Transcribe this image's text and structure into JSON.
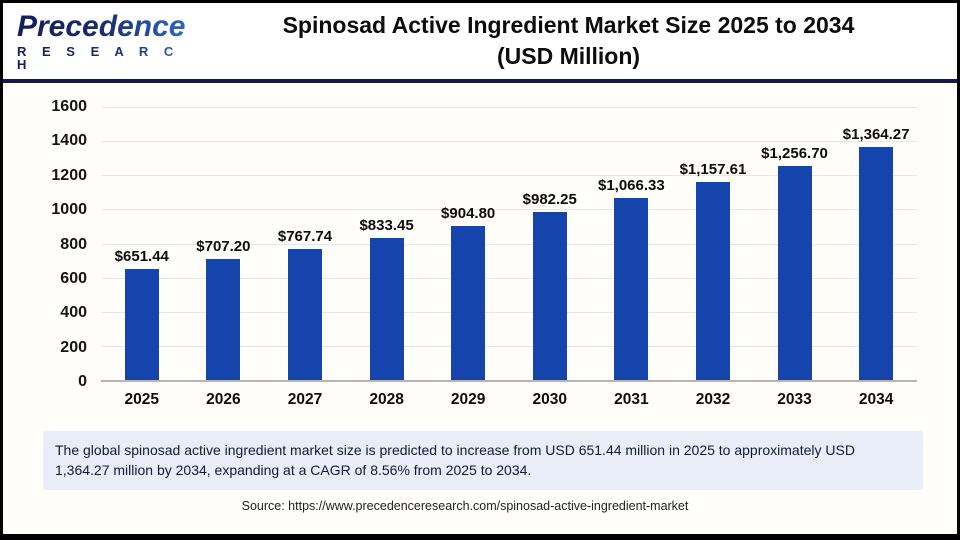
{
  "logo": {
    "brand": "Precedence",
    "sub": "R E S E A R C H"
  },
  "header": {
    "title_line1": "Spinosad Active Ingredient Market Size 2025 to 2034",
    "title_line2": "(USD Million)"
  },
  "chart_data": {
    "type": "bar",
    "title": "Spinosad Active Ingredient Market Size 2025 to 2034 (USD Million)",
    "categories": [
      "2025",
      "2026",
      "2027",
      "2028",
      "2029",
      "2030",
      "2031",
      "2032",
      "2033",
      "2034"
    ],
    "values": [
      651.44,
      707.2,
      767.74,
      833.45,
      904.8,
      982.25,
      1066.33,
      1157.61,
      1256.7,
      1364.27
    ],
    "data_labels": [
      "$651.44",
      "$707.20",
      "$767.74",
      "$833.45",
      "$904.80",
      "$982.25",
      "$1,066.33",
      "$1,157.61",
      "$1,256.70",
      "$1,364.27"
    ],
    "xlabel": "",
    "ylabel": "",
    "ylim": [
      0,
      1600
    ],
    "yticks": [
      0,
      200,
      400,
      600,
      800,
      1000,
      1200,
      1400,
      1600
    ],
    "grid": "horizontal",
    "legend": "none",
    "bar_color": "#1544ac"
  },
  "annotation": {
    "text": "The global spinosad active ingredient market size is predicted to increase from USD 651.44 million in 2025 to approximately USD 1,364.27 million by 2034, expanding at a CAGR of 8.56% from 2025 to 2034."
  },
  "source": {
    "text": "Source: https://www.precedenceresearch.com/spinosad-active-ingredient-market"
  },
  "colors": {
    "bar": "#1544ac",
    "divider": "#111a4b",
    "annotation_bg": "#e9edf8",
    "gridline": "#e7e7e7",
    "axis_line": "#b5b5b5"
  }
}
